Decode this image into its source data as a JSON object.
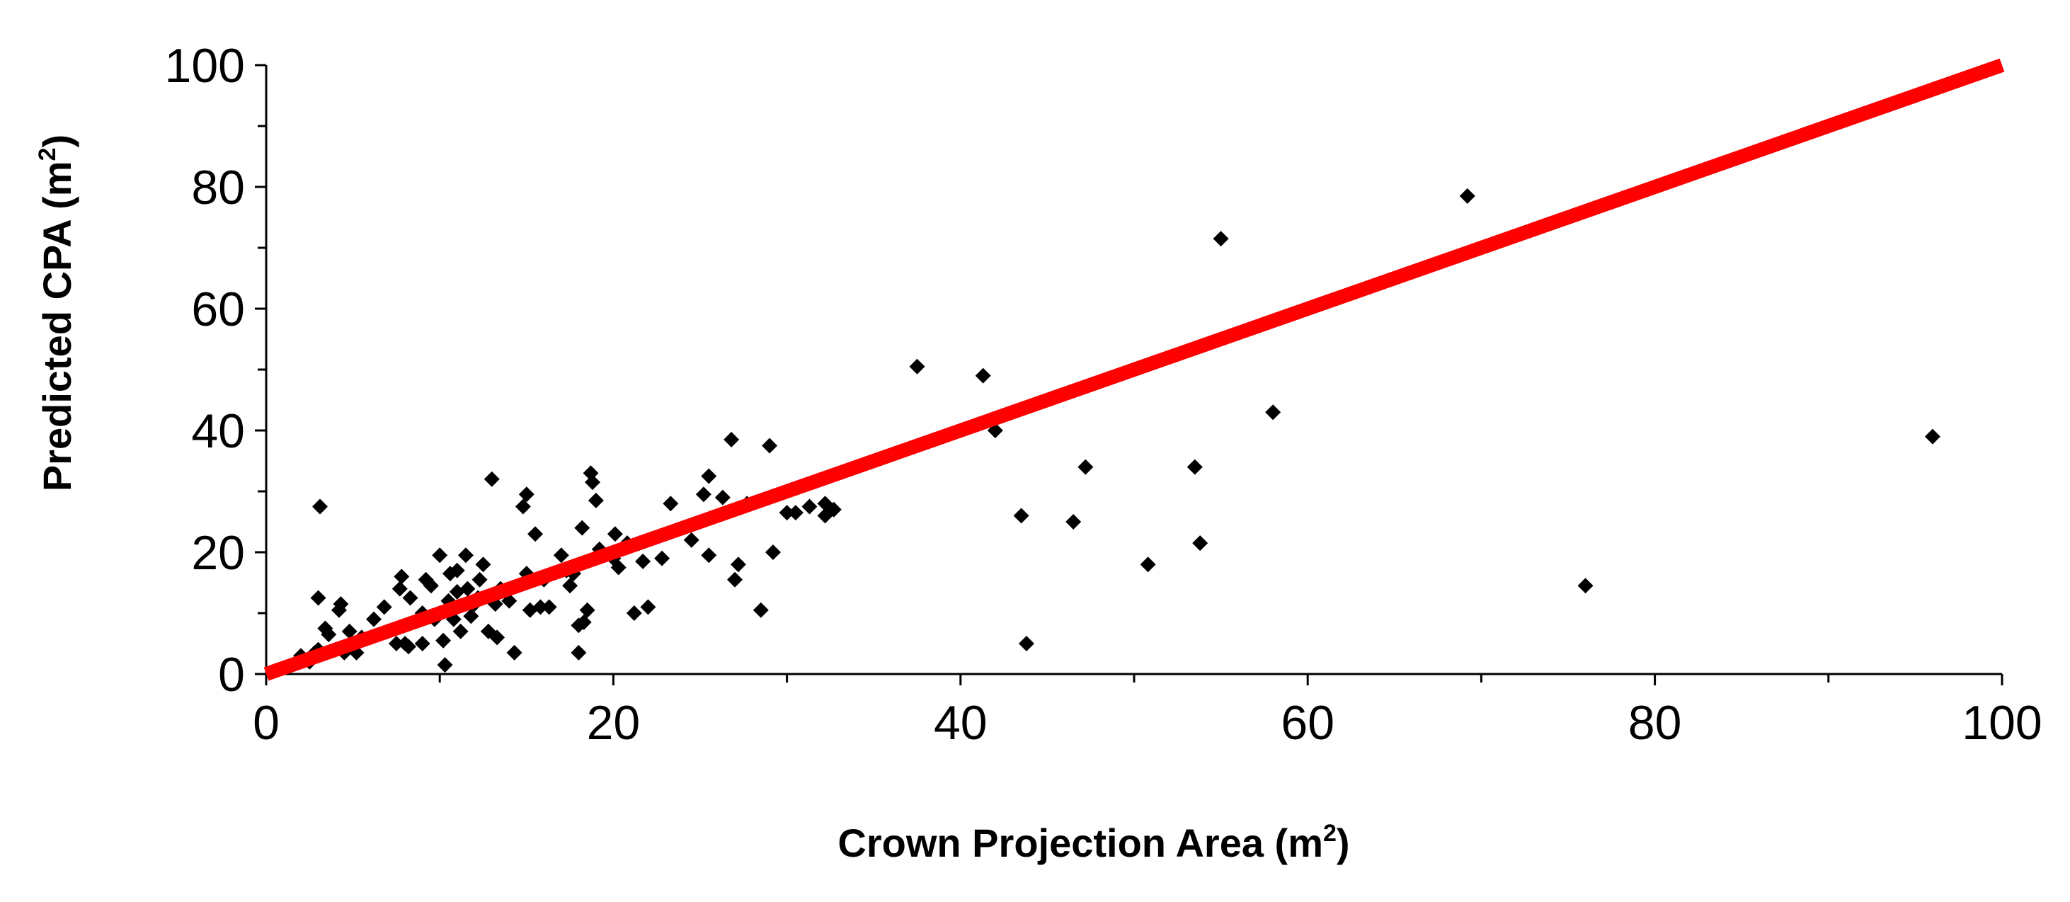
{
  "chart_data": {
    "type": "scatter",
    "title": "",
    "xlabel": "Crown Projection Area (m",
    "ylabel": "Predicted CPA (m",
    "label_superscript": "2",
    "label_suffix": ")",
    "xlim": [
      0,
      100
    ],
    "ylim": [
      0,
      100
    ],
    "x_ticks": [
      0,
      20,
      40,
      60,
      80,
      100
    ],
    "y_ticks": [
      0,
      20,
      40,
      60,
      80,
      100
    ],
    "x_tick_labels": [
      "0",
      "20",
      "40",
      "60",
      "80",
      "100"
    ],
    "y_tick_labels": [
      "0",
      "20",
      "40",
      "60",
      "80",
      "100"
    ],
    "x_minor_step": 10,
    "y_minor_step": 10,
    "grid": false,
    "legend": "none",
    "reference_line": {
      "from": [
        0,
        0
      ],
      "to": [
        100,
        100
      ],
      "color": "#ff0000"
    },
    "point_color": "#000000",
    "series": [
      {
        "marker": "diamond",
        "points": [
          [
            2,
            3
          ],
          [
            2.5,
            2
          ],
          [
            2.8,
            3.5
          ],
          [
            3,
            4
          ],
          [
            3,
            12.5
          ],
          [
            3.1,
            27.5
          ],
          [
            3.4,
            7.5
          ],
          [
            3.6,
            6.5
          ],
          [
            4,
            4
          ],
          [
            4.2,
            10.5
          ],
          [
            4.3,
            11.5
          ],
          [
            4.5,
            3.5
          ],
          [
            4.8,
            7
          ],
          [
            5,
            5
          ],
          [
            5.2,
            3.5
          ],
          [
            5.5,
            6
          ],
          [
            6,
            6
          ],
          [
            6.2,
            9
          ],
          [
            6.8,
            11
          ],
          [
            7,
            7
          ],
          [
            7.5,
            5
          ],
          [
            7.7,
            14
          ],
          [
            7.8,
            16
          ],
          [
            8,
            5
          ],
          [
            8.2,
            4.5
          ],
          [
            8.3,
            12.5
          ],
          [
            9,
            10
          ],
          [
            9,
            5
          ],
          [
            9.2,
            15.5
          ],
          [
            9.5,
            14.5
          ],
          [
            9.7,
            9
          ],
          [
            10,
            19.5
          ],
          [
            10,
            10
          ],
          [
            10.2,
            5.5
          ],
          [
            10.3,
            1.5
          ],
          [
            10.5,
            12
          ],
          [
            10.6,
            16.5
          ],
          [
            10.8,
            9
          ],
          [
            11,
            17
          ],
          [
            11,
            13.5
          ],
          [
            11.2,
            7
          ],
          [
            11.5,
            19.5
          ],
          [
            11.6,
            14
          ],
          [
            11.8,
            9.5
          ],
          [
            12,
            11.5
          ],
          [
            12.2,
            12.5
          ],
          [
            12.3,
            15.5
          ],
          [
            12.5,
            18
          ],
          [
            12.8,
            7
          ],
          [
            13,
            32
          ],
          [
            13.2,
            11.5
          ],
          [
            13.3,
            6
          ],
          [
            13.5,
            14
          ],
          [
            14,
            12
          ],
          [
            14.3,
            3.5
          ],
          [
            14.8,
            27.5
          ],
          [
            15,
            29.5
          ],
          [
            15,
            16.5
          ],
          [
            15.2,
            10.5
          ],
          [
            15.5,
            23
          ],
          [
            15.8,
            11
          ],
          [
            16,
            15.5
          ],
          [
            16.3,
            11
          ],
          [
            17,
            19.5
          ],
          [
            17.3,
            17
          ],
          [
            17.5,
            14.5
          ],
          [
            17.7,
            16.5
          ],
          [
            18,
            3.5
          ],
          [
            18,
            8
          ],
          [
            18.2,
            24
          ],
          [
            18.3,
            8.5
          ],
          [
            18.5,
            10.5
          ],
          [
            18.7,
            33
          ],
          [
            18.8,
            31.5
          ],
          [
            19,
            28.5
          ],
          [
            19.2,
            20.5
          ],
          [
            20,
            19
          ],
          [
            20.1,
            23
          ],
          [
            20.3,
            17.5
          ],
          [
            20.8,
            21.5
          ],
          [
            21.2,
            10
          ],
          [
            21.5,
            21.5
          ],
          [
            21.7,
            18.5
          ],
          [
            22,
            11
          ],
          [
            22.8,
            19
          ],
          [
            23.3,
            28
          ],
          [
            24.5,
            22
          ],
          [
            25.2,
            29.5
          ],
          [
            25.5,
            32.5
          ],
          [
            25.5,
            19.5
          ],
          [
            26.3,
            29
          ],
          [
            26.8,
            38.5
          ],
          [
            27,
            15.5
          ],
          [
            27.2,
            18
          ],
          [
            27.7,
            28
          ],
          [
            28.5,
            10.5
          ],
          [
            29,
            37.5
          ],
          [
            29.2,
            20
          ],
          [
            30,
            26.5
          ],
          [
            30.5,
            26.5
          ],
          [
            31.3,
            27.5
          ],
          [
            32.2,
            28
          ],
          [
            32.2,
            26
          ],
          [
            32.7,
            27
          ],
          [
            37.5,
            50.5
          ],
          [
            41,
            41
          ],
          [
            41.3,
            49
          ],
          [
            42,
            40
          ],
          [
            43.5,
            26
          ],
          [
            43.8,
            5
          ],
          [
            46.5,
            25
          ],
          [
            47.2,
            34
          ],
          [
            50.8,
            18
          ],
          [
            53.5,
            34
          ],
          [
            53.8,
            21.5
          ],
          [
            55,
            71.5
          ],
          [
            58,
            43
          ],
          [
            69.2,
            78.5
          ],
          [
            76,
            14.5
          ],
          [
            96,
            39
          ]
        ]
      }
    ]
  }
}
